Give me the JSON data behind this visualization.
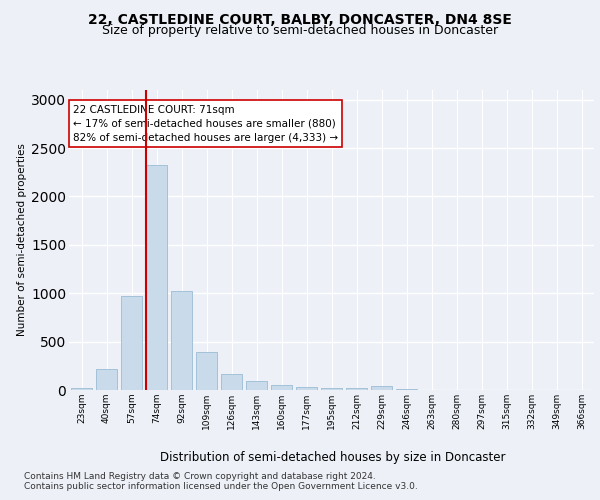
{
  "title1": "22, CASTLEDINE COURT, BALBY, DONCASTER, DN4 8SE",
  "title2": "Size of property relative to semi-detached houses in Doncaster",
  "xlabel": "Distribution of semi-detached houses by size in Doncaster",
  "ylabel": "Number of semi-detached properties",
  "categories": [
    "23sqm",
    "40sqm",
    "57sqm",
    "74sqm",
    "92sqm",
    "109sqm",
    "126sqm",
    "143sqm",
    "160sqm",
    "177sqm",
    "195sqm",
    "212sqm",
    "229sqm",
    "246sqm",
    "263sqm",
    "280sqm",
    "297sqm",
    "315sqm",
    "332sqm",
    "349sqm",
    "366sqm"
  ],
  "values": [
    18,
    220,
    970,
    2330,
    1020,
    390,
    170,
    95,
    55,
    35,
    22,
    18,
    45,
    12,
    4,
    3,
    3,
    3,
    3,
    3,
    3
  ],
  "bar_color": "#c9daea",
  "bar_edge_color": "#9bbdd4",
  "vline_index": 3,
  "vline_color": "#cc0000",
  "annotation_line1": "22 CASTLEDINE COURT: 71sqm",
  "annotation_line2": "← 17% of semi-detached houses are smaller (880)",
  "annotation_line3": "82% of semi-detached houses are larger (4,333) →",
  "annotation_box_facecolor": "#ffffff",
  "annotation_box_edgecolor": "#cc0000",
  "ylim": [
    0,
    3100
  ],
  "yticks": [
    0,
    500,
    1000,
    1500,
    2000,
    2500,
    3000
  ],
  "footnote1": "Contains HM Land Registry data © Crown copyright and database right 2024.",
  "footnote2": "Contains public sector information licensed under the Open Government Licence v3.0.",
  "bg_color": "#edf1f7",
  "grid_color": "#ffffff",
  "title1_fontsize": 10,
  "title2_fontsize": 9,
  "ylabel_fontsize": 7.5,
  "xlabel_fontsize": 8.5,
  "tick_fontsize": 6.5,
  "annotation_fontsize": 7.5,
  "footnote_fontsize": 6.5
}
